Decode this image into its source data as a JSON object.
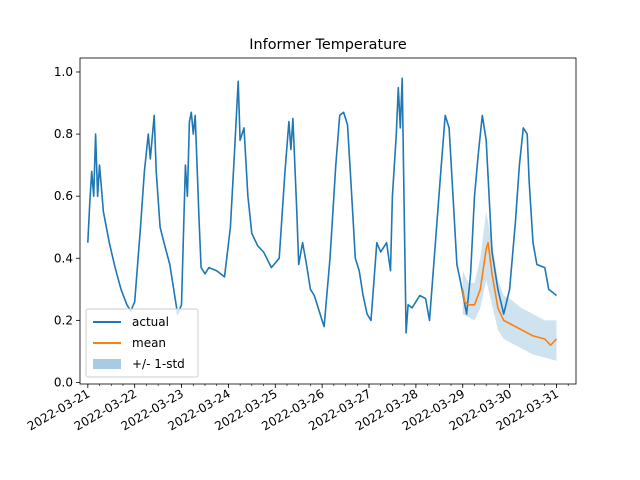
{
  "chart_data": {
    "type": "line",
    "title": "Informer Temperature",
    "xlabel": "",
    "ylabel": "",
    "x_range": [
      "2022-03-20T20:00",
      "2022-03-31T10:00"
    ],
    "ylim": [
      -0.005,
      1.045
    ],
    "x_ticks": [
      "2022-03-21",
      "2022-03-22",
      "2022-03-23",
      "2022-03-24",
      "2022-03-25",
      "2022-03-26",
      "2022-03-27",
      "2022-03-28",
      "2022-03-29",
      "2022-03-30",
      "2022-03-31"
    ],
    "y_ticks": [
      "0.0",
      "0.2",
      "0.4",
      "0.6",
      "0.8",
      "1.0"
    ],
    "grid": false,
    "legend": "lower-left",
    "series": [
      {
        "name": "actual",
        "color": "#1f77b4",
        "points": [
          [
            "2022-03-21T00:00",
            0.45
          ],
          [
            "2022-03-21T01:00",
            0.58
          ],
          [
            "2022-03-21T02:00",
            0.68
          ],
          [
            "2022-03-21T03:00",
            0.6
          ],
          [
            "2022-03-21T04:00",
            0.8
          ],
          [
            "2022-03-21T05:00",
            0.6
          ],
          [
            "2022-03-21T06:00",
            0.7
          ],
          [
            "2022-03-21T08:00",
            0.55
          ],
          [
            "2022-03-21T11:00",
            0.45
          ],
          [
            "2022-03-21T14:00",
            0.37
          ],
          [
            "2022-03-21T17:00",
            0.3
          ],
          [
            "2022-03-21T20:00",
            0.25
          ],
          [
            "2022-03-21T22:00",
            0.23
          ],
          [
            "2022-03-22T00:00",
            0.26
          ],
          [
            "2022-03-22T03:00",
            0.5
          ],
          [
            "2022-03-22T05:00",
            0.68
          ],
          [
            "2022-03-22T07:00",
            0.8
          ],
          [
            "2022-03-22T08:00",
            0.72
          ],
          [
            "2022-03-22T10:00",
            0.86
          ],
          [
            "2022-03-22T11:00",
            0.68
          ],
          [
            "2022-03-22T13:00",
            0.5
          ],
          [
            "2022-03-22T15:00",
            0.45
          ],
          [
            "2022-03-22T18:00",
            0.38
          ],
          [
            "2022-03-22T20:00",
            0.3
          ],
          [
            "2022-03-22T22:00",
            0.22
          ],
          [
            "2022-03-23T00:00",
            0.25
          ],
          [
            "2022-03-23T02:00",
            0.7
          ],
          [
            "2022-03-23T03:00",
            0.6
          ],
          [
            "2022-03-23T04:00",
            0.84
          ],
          [
            "2022-03-23T05:00",
            0.87
          ],
          [
            "2022-03-23T06:00",
            0.8
          ],
          [
            "2022-03-23T07:00",
            0.86
          ],
          [
            "2022-03-23T09:00",
            0.52
          ],
          [
            "2022-03-23T10:00",
            0.37
          ],
          [
            "2022-03-23T12:00",
            0.35
          ],
          [
            "2022-03-23T14:00",
            0.37
          ],
          [
            "2022-03-23T18:00",
            0.36
          ],
          [
            "2022-03-23T22:00",
            0.34
          ],
          [
            "2022-03-24T01:00",
            0.5
          ],
          [
            "2022-03-24T03:00",
            0.73
          ],
          [
            "2022-03-24T05:00",
            0.97
          ],
          [
            "2022-03-24T06:00",
            0.78
          ],
          [
            "2022-03-24T08:00",
            0.82
          ],
          [
            "2022-03-24T10:00",
            0.6
          ],
          [
            "2022-03-24T12:00",
            0.48
          ],
          [
            "2022-03-24T15:00",
            0.44
          ],
          [
            "2022-03-24T18:00",
            0.42
          ],
          [
            "2022-03-24T22:00",
            0.37
          ],
          [
            "2022-03-25T02:00",
            0.4
          ],
          [
            "2022-03-25T05:00",
            0.68
          ],
          [
            "2022-03-25T07:00",
            0.84
          ],
          [
            "2022-03-25T08:00",
            0.75
          ],
          [
            "2022-03-25T09:00",
            0.85
          ],
          [
            "2022-03-25T11:00",
            0.55
          ],
          [
            "2022-03-25T12:00",
            0.38
          ],
          [
            "2022-03-25T14:00",
            0.45
          ],
          [
            "2022-03-25T16:00",
            0.38
          ],
          [
            "2022-03-25T18:00",
            0.3
          ],
          [
            "2022-03-25T20:00",
            0.28
          ],
          [
            "2022-03-26T00:00",
            0.2
          ],
          [
            "2022-03-26T01:00",
            0.18
          ],
          [
            "2022-03-26T04:00",
            0.4
          ],
          [
            "2022-03-26T07:00",
            0.7
          ],
          [
            "2022-03-26T09:00",
            0.86
          ],
          [
            "2022-03-26T11:00",
            0.87
          ],
          [
            "2022-03-26T13:00",
            0.83
          ],
          [
            "2022-03-26T15:00",
            0.62
          ],
          [
            "2022-03-26T17:00",
            0.4
          ],
          [
            "2022-03-26T19:00",
            0.36
          ],
          [
            "2022-03-26T21:00",
            0.28
          ],
          [
            "2022-03-26T23:00",
            0.22
          ],
          [
            "2022-03-27T01:00",
            0.2
          ],
          [
            "2022-03-27T04:00",
            0.45
          ],
          [
            "2022-03-27T06:00",
            0.42
          ],
          [
            "2022-03-27T09:00",
            0.45
          ],
          [
            "2022-03-27T11:00",
            0.36
          ],
          [
            "2022-03-27T12:00",
            0.6
          ],
          [
            "2022-03-27T14:00",
            0.8
          ],
          [
            "2022-03-27T15:00",
            0.95
          ],
          [
            "2022-03-27T16:00",
            0.82
          ],
          [
            "2022-03-27T17:00",
            0.98
          ],
          [
            "2022-03-27T18:00",
            0.55
          ],
          [
            "2022-03-27T19:00",
            0.16
          ],
          [
            "2022-03-27T20:00",
            0.25
          ],
          [
            "2022-03-27T22:00",
            0.24
          ],
          [
            "2022-03-28T00:00",
            0.26
          ],
          [
            "2022-03-28T02:00",
            0.28
          ],
          [
            "2022-03-28T05:00",
            0.27
          ],
          [
            "2022-03-28T07:00",
            0.2
          ],
          [
            "2022-03-28T10:00",
            0.45
          ],
          [
            "2022-03-28T13:00",
            0.7
          ],
          [
            "2022-03-28T15:00",
            0.86
          ],
          [
            "2022-03-28T17:00",
            0.82
          ],
          [
            "2022-03-28T19:00",
            0.6
          ],
          [
            "2022-03-28T21:00",
            0.38
          ],
          [
            "2022-03-28T23:00",
            0.32
          ],
          [
            "2022-03-29T02:00",
            0.22
          ],
          [
            "2022-03-29T04:00",
            0.35
          ],
          [
            "2022-03-29T06:00",
            0.6
          ],
          [
            "2022-03-29T08:00",
            0.74
          ],
          [
            "2022-03-29T10:00",
            0.86
          ],
          [
            "2022-03-29T12:00",
            0.78
          ],
          [
            "2022-03-29T15:00",
            0.42
          ],
          [
            "2022-03-29T18:00",
            0.3
          ],
          [
            "2022-03-29T21:00",
            0.22
          ],
          [
            "2022-03-30T00:00",
            0.3
          ],
          [
            "2022-03-30T03:00",
            0.52
          ],
          [
            "2022-03-30T05:00",
            0.7
          ],
          [
            "2022-03-30T07:00",
            0.82
          ],
          [
            "2022-03-30T09:00",
            0.8
          ],
          [
            "2022-03-30T10:00",
            0.65
          ],
          [
            "2022-03-30T12:00",
            0.45
          ],
          [
            "2022-03-30T14:00",
            0.38
          ],
          [
            "2022-03-30T18:00",
            0.37
          ],
          [
            "2022-03-30T20:00",
            0.3
          ],
          [
            "2022-03-30T22:00",
            0.29
          ],
          [
            "2022-03-31T00:00",
            0.28
          ]
        ]
      },
      {
        "name": "mean",
        "color": "#ff7f0e",
        "points": [
          [
            "2022-03-29T00:00",
            0.3
          ],
          [
            "2022-03-29T01:00",
            0.26
          ],
          [
            "2022-03-29T03:00",
            0.25
          ],
          [
            "2022-03-29T06:00",
            0.25
          ],
          [
            "2022-03-29T09:00",
            0.3
          ],
          [
            "2022-03-29T12:00",
            0.43
          ],
          [
            "2022-03-29T13:00",
            0.45
          ],
          [
            "2022-03-29T15:00",
            0.35
          ],
          [
            "2022-03-29T18:00",
            0.24
          ],
          [
            "2022-03-29T21:00",
            0.2
          ],
          [
            "2022-03-30T00:00",
            0.19
          ],
          [
            "2022-03-30T06:00",
            0.17
          ],
          [
            "2022-03-30T12:00",
            0.15
          ],
          [
            "2022-03-30T18:00",
            0.14
          ],
          [
            "2022-03-30T21:00",
            0.12
          ],
          [
            "2022-03-31T00:00",
            0.14
          ]
        ]
      }
    ],
    "band": {
      "name": "+/- 1-std",
      "color": "#a6cbe3",
      "points": [
        [
          "2022-03-29T00:00",
          0.22,
          0.36
        ],
        [
          "2022-03-29T03:00",
          0.21,
          0.32
        ],
        [
          "2022-03-29T06:00",
          0.2,
          0.32
        ],
        [
          "2022-03-29T09:00",
          0.24,
          0.4
        ],
        [
          "2022-03-29T12:00",
          0.33,
          0.55
        ],
        [
          "2022-03-29T15:00",
          0.25,
          0.45
        ],
        [
          "2022-03-29T18:00",
          0.17,
          0.33
        ],
        [
          "2022-03-29T21:00",
          0.14,
          0.28
        ],
        [
          "2022-03-30T00:00",
          0.13,
          0.27
        ],
        [
          "2022-03-30T06:00",
          0.11,
          0.24
        ],
        [
          "2022-03-30T12:00",
          0.09,
          0.22
        ],
        [
          "2022-03-30T18:00",
          0.08,
          0.2
        ],
        [
          "2022-03-31T00:00",
          0.07,
          0.2
        ]
      ]
    }
  }
}
